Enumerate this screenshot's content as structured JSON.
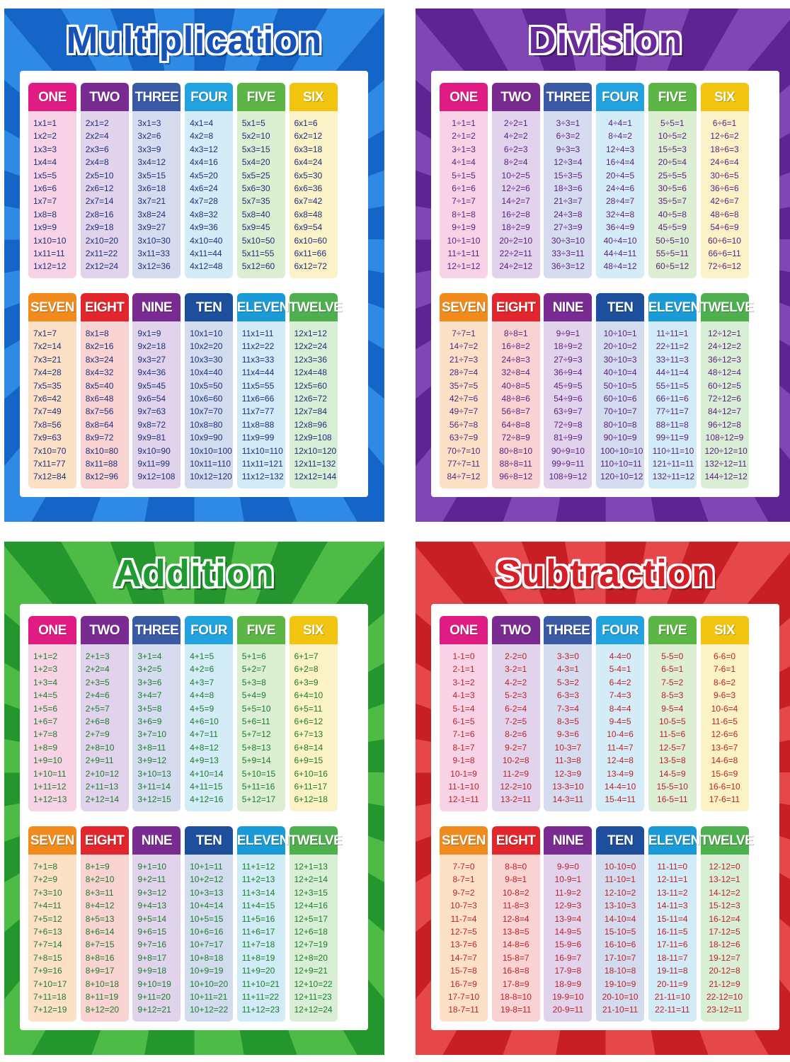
{
  "posters": [
    {
      "title": "Multiplication",
      "columns": [
        {
          "label": "ONE",
          "rows": [
            "1x1=1",
            "1x2=2",
            "1x3=3",
            "1x4=4",
            "1x5=5",
            "1x6=6",
            "1x7=7",
            "1x8=8",
            "1x9=9",
            "1x10=10",
            "1x11=11",
            "1x12=12"
          ]
        },
        {
          "label": "TWO",
          "rows": [
            "2x1=2",
            "2x2=4",
            "2x3=6",
            "2x4=8",
            "2x5=10",
            "2x6=12",
            "2x7=14",
            "2x8=16",
            "2x9=18",
            "2x10=20",
            "2x11=22",
            "2x12=24"
          ]
        },
        {
          "label": "THREE",
          "rows": [
            "3x1=3",
            "3x2=6",
            "3x3=9",
            "3x4=12",
            "3x5=15",
            "3x6=18",
            "3x7=21",
            "3x8=24",
            "3x9=27",
            "3x10=30",
            "3x11=33",
            "3x12=36"
          ]
        },
        {
          "label": "FOUR",
          "rows": [
            "4x1=4",
            "4x2=8",
            "4x3=12",
            "4x4=16",
            "4x5=20",
            "4x6=24",
            "4x7=28",
            "4x8=32",
            "4x9=36",
            "4x10=40",
            "4x11=44",
            "4x12=48"
          ]
        },
        {
          "label": "FIVE",
          "rows": [
            "5x1=5",
            "5x2=10",
            "5x3=15",
            "5x4=20",
            "5x5=25",
            "5x6=30",
            "5x7=35",
            "5x8=40",
            "5x9=45",
            "5x10=50",
            "5x11=55",
            "5x12=60"
          ]
        },
        {
          "label": "SIX",
          "rows": [
            "6x1=6",
            "6x2=12",
            "6x3=18",
            "6x4=24",
            "6x5=30",
            "6x6=36",
            "6x7=42",
            "6x8=48",
            "6x9=54",
            "6x10=60",
            "6x11=66",
            "6x12=72"
          ]
        },
        {
          "label": "SEVEN",
          "rows": [
            "7x1=7",
            "7x2=14",
            "7x3=21",
            "7x4=28",
            "7x5=35",
            "7x6=42",
            "7x7=49",
            "7x8=56",
            "7x9=63",
            "7x10=70",
            "7x11=77",
            "7x12=84"
          ]
        },
        {
          "label": "EIGHT",
          "rows": [
            "8x1=8",
            "8x2=16",
            "8x3=24",
            "8x4=32",
            "8x5=40",
            "8x6=48",
            "8x7=56",
            "8x8=64",
            "8x9=72",
            "8x10=80",
            "8x11=88",
            "8x12=96"
          ]
        },
        {
          "label": "NINE",
          "rows": [
            "9x1=9",
            "9x2=18",
            "9x3=27",
            "9x4=36",
            "9x5=45",
            "9x6=54",
            "9x7=63",
            "9x8=72",
            "9x9=81",
            "9x10=90",
            "9x11=99",
            "9x12=108"
          ]
        },
        {
          "label": "TEN",
          "rows": [
            "10x1=10",
            "10x2=20",
            "10x3=30",
            "10x4=40",
            "10x5=50",
            "10x6=60",
            "10x7=70",
            "10x8=80",
            "10x9=90",
            "10x10=100",
            "10x11=110",
            "10x12=120"
          ]
        },
        {
          "label": "ELEVEN",
          "rows": [
            "11x1=11",
            "11x2=22",
            "11x3=33",
            "11x4=44",
            "11x5=55",
            "11x6=66",
            "11x7=77",
            "11x8=88",
            "11x9=99",
            "11x10=110",
            "11x11=121",
            "11x12=132"
          ]
        },
        {
          "label": "TWELVE",
          "rows": [
            "12x1=12",
            "12x2=24",
            "12x3=36",
            "12x4=48",
            "12x5=60",
            "12x6=72",
            "12x7=84",
            "12x8=96",
            "12x9=108",
            "12x10=120",
            "12x11=132",
            "12x12=144"
          ]
        }
      ]
    },
    {
      "title": "Division",
      "columns": [
        {
          "label": "ONE",
          "rows": [
            "1÷1=1",
            "2÷1=2",
            "3÷1=3",
            "4÷1=4",
            "5÷1=5",
            "6÷1=6",
            "7÷1=7",
            "8÷1=8",
            "9÷1=9",
            "10÷1=10",
            "11÷1=11",
            "12÷1=12"
          ]
        },
        {
          "label": "TWO",
          "rows": [
            "2÷2=1",
            "4÷2=2",
            "6÷2=3",
            "8÷2=4",
            "10÷2=5",
            "12÷2=6",
            "14÷2=7",
            "16÷2=8",
            "18÷2=9",
            "20÷2=10",
            "22÷2=11",
            "24÷2=12"
          ]
        },
        {
          "label": "THREE",
          "rows": [
            "3÷3=1",
            "6÷3=2",
            "9÷3=3",
            "12÷3=4",
            "15÷3=5",
            "18÷3=6",
            "21÷3=7",
            "24÷3=8",
            "27÷3=9",
            "30÷3=10",
            "33÷3=11",
            "36÷3=12"
          ]
        },
        {
          "label": "FOUR",
          "rows": [
            "4÷4=1",
            "8÷4=2",
            "12÷4=3",
            "16÷4=4",
            "20÷4=5",
            "24÷4=6",
            "28÷4=7",
            "32÷4=8",
            "36÷4=9",
            "40÷4=10",
            "44÷4=11",
            "48÷4=12"
          ]
        },
        {
          "label": "FIVE",
          "rows": [
            "5÷5=1",
            "10÷5=2",
            "15÷5=3",
            "20÷5=4",
            "25÷5=5",
            "30÷5=6",
            "35÷5=7",
            "40÷5=8",
            "45÷5=9",
            "50÷5=10",
            "55÷5=11",
            "60÷5=12"
          ]
        },
        {
          "label": "SIX",
          "rows": [
            "6÷6=1",
            "12÷6=2",
            "18÷6=3",
            "24÷6=4",
            "30÷6=5",
            "36÷6=6",
            "42÷6=7",
            "48÷6=8",
            "54÷6=9",
            "60÷6=10",
            "66÷6=11",
            "72÷6=12"
          ]
        },
        {
          "label": "SEVEN",
          "rows": [
            "7÷7=1",
            "14÷7=2",
            "21÷7=3",
            "28÷7=4",
            "35÷7=5",
            "42÷7=6",
            "49÷7=7",
            "56÷7=8",
            "63÷7=9",
            "70÷7=10",
            "77÷7=11",
            "84÷7=12"
          ]
        },
        {
          "label": "EIGHT",
          "rows": [
            "8÷8=1",
            "16÷8=2",
            "24÷8=3",
            "32÷8=4",
            "40÷8=5",
            "48÷8=6",
            "56÷8=7",
            "64÷8=8",
            "72÷8=9",
            "80÷8=10",
            "88÷8=11",
            "96÷8=12"
          ]
        },
        {
          "label": "NINE",
          "rows": [
            "9÷9=1",
            "18÷9=2",
            "27÷9=3",
            "36÷9=4",
            "45÷9=5",
            "54÷9=6",
            "63÷9=7",
            "72÷9=8",
            "81÷9=9",
            "90÷9=10",
            "99÷9=11",
            "108÷9=12"
          ]
        },
        {
          "label": "TEN",
          "rows": [
            "10÷10=1",
            "20÷10=2",
            "30÷10=3",
            "40÷10=4",
            "50÷10=5",
            "60÷10=6",
            "70÷10=7",
            "80÷10=8",
            "90÷10=9",
            "100÷10=10",
            "110÷10=11",
            "120÷10=12"
          ]
        },
        {
          "label": "ELEVEN",
          "rows": [
            "11÷11=1",
            "22÷11=2",
            "33÷11=3",
            "44÷11=4",
            "55÷11=5",
            "66÷11=6",
            "77÷11=7",
            "88÷11=8",
            "99÷11=9",
            "110÷11=10",
            "121÷11=11",
            "132÷11=12"
          ]
        },
        {
          "label": "TWELVE",
          "rows": [
            "12÷12=1",
            "24÷12=2",
            "36÷12=3",
            "48÷12=4",
            "60÷12=5",
            "72÷12=6",
            "84÷12=7",
            "96÷12=8",
            "108÷12=9",
            "120÷12=10",
            "132÷12=11",
            "144÷12=12"
          ]
        }
      ]
    },
    {
      "title": "Addition",
      "columns": [
        {
          "label": "ONE",
          "rows": [
            "1+1=2",
            "1+2=3",
            "1+3=4",
            "1+4=5",
            "1+5=6",
            "1+6=7",
            "1+7=8",
            "1+8=9",
            "1+9=10",
            "1+10=11",
            "1+11=12",
            "1+12=13"
          ]
        },
        {
          "label": "TWO",
          "rows": [
            "2+1=3",
            "2+2=4",
            "2+3=5",
            "2+4=6",
            "2+5=7",
            "2+6=8",
            "2+7=9",
            "2+8=10",
            "2+9=11",
            "2+10=12",
            "2+11=13",
            "2+12=14"
          ]
        },
        {
          "label": "THREE",
          "rows": [
            "3+1=4",
            "3+2=5",
            "3+3=6",
            "3+4=7",
            "3+5=8",
            "3+6=9",
            "3+7=10",
            "3+8=11",
            "3+9=12",
            "3+10=13",
            "3+11=14",
            "3+12=15"
          ]
        },
        {
          "label": "FOUR",
          "rows": [
            "4+1=5",
            "4+2=6",
            "4+3=7",
            "4+4=8",
            "4+5=9",
            "4+6=10",
            "4+7=11",
            "4+8=12",
            "4+9=13",
            "4+10=14",
            "4+11=15",
            "4+12=16"
          ]
        },
        {
          "label": "FIVE",
          "rows": [
            "5+1=6",
            "5+2=7",
            "5+3=8",
            "5+4=9",
            "5+5=10",
            "5+6=11",
            "5+7=12",
            "5+8=13",
            "5+9=14",
            "5+10=15",
            "5+11=16",
            "5+12=17"
          ]
        },
        {
          "label": "SIX",
          "rows": [
            "6+1=7",
            "6+2=8",
            "6+3=9",
            "6+4=10",
            "6+5=11",
            "6+6=12",
            "6+7=13",
            "6+8=14",
            "6+9=15",
            "6+10=16",
            "6+11=17",
            "6+12=18"
          ]
        },
        {
          "label": "SEVEN",
          "rows": [
            "7+1=8",
            "7+2=9",
            "7+3=10",
            "7+4=11",
            "7+5=12",
            "7+6=13",
            "7+7=14",
            "7+8=15",
            "7+9=16",
            "7+10=17",
            "7+11=18",
            "7+12=19"
          ]
        },
        {
          "label": "EIGHT",
          "rows": [
            "8+1=9",
            "8+2=10",
            "8+3=11",
            "8+4=12",
            "8+5=13",
            "8+6=14",
            "8+7=15",
            "8+8=16",
            "8+9=17",
            "8+10=18",
            "8+11=19",
            "8+12=20"
          ]
        },
        {
          "label": "NINE",
          "rows": [
            "9+1=10",
            "9+2=11",
            "9+3=12",
            "9+4=13",
            "9+5=14",
            "9+6=15",
            "9+7=16",
            "9+8=17",
            "9+9=18",
            "9+10=19",
            "9+11=20",
            "9+12=21"
          ]
        },
        {
          "label": "TEN",
          "rows": [
            "10+1=11",
            "10+2=12",
            "10+3=13",
            "10+4=14",
            "10+5=15",
            "10+6=16",
            "10+7=17",
            "10+8=18",
            "10+9=19",
            "10+10=20",
            "10+11=21",
            "10+12=22"
          ]
        },
        {
          "label": "ELEVEN",
          "rows": [
            "11+1=12",
            "11+2=13",
            "11+3=14",
            "11+4=15",
            "11+5=16",
            "11+6=17",
            "11+7=18",
            "11+8=19",
            "11+9=20",
            "11+10=21",
            "11+11=22",
            "11+12=23"
          ]
        },
        {
          "label": "TWELVE",
          "rows": [
            "12+1=13",
            "12+2=14",
            "12+3=15",
            "12+4=16",
            "12+5=17",
            "12+6=18",
            "12+7=19",
            "12+8=20",
            "12+9=21",
            "12+10=22",
            "12+11=23",
            "12+12=24"
          ]
        }
      ]
    },
    {
      "title": "Subtraction",
      "columns": [
        {
          "label": "ONE",
          "rows": [
            "1-1=0",
            "2-1=1",
            "3-1=2",
            "4-1=3",
            "5-1=4",
            "6-1=5",
            "7-1=6",
            "8-1=7",
            "9-1=8",
            "10-1=9",
            "11-1=10",
            "12-1=11"
          ]
        },
        {
          "label": "TWO",
          "rows": [
            "2-2=0",
            "3-2=1",
            "4-2=2",
            "5-2=3",
            "6-2=4",
            "7-2=5",
            "8-2=6",
            "9-2=7",
            "10-2=8",
            "11-2=9",
            "12-2=10",
            "13-2=11"
          ]
        },
        {
          "label": "THREE",
          "rows": [
            "3-3=0",
            "4-3=1",
            "5-3=2",
            "6-3=3",
            "7-3=4",
            "8-3=5",
            "9-3=6",
            "10-3=7",
            "11-3=8",
            "12-3=9",
            "13-3=10",
            "14-3=11"
          ]
        },
        {
          "label": "FOUR",
          "rows": [
            "4-4=0",
            "5-4=1",
            "6-4=2",
            "7-4=3",
            "8-4=4",
            "9-4=5",
            "10-4=6",
            "11-4=7",
            "12-4=8",
            "13-4=9",
            "14-4=10",
            "15-4=11"
          ]
        },
        {
          "label": "FIVE",
          "rows": [
            "5-5=0",
            "6-5=1",
            "7-5=2",
            "8-5=3",
            "9-5=4",
            "10-5=5",
            "11-5=6",
            "12-5=7",
            "13-5=8",
            "14-5=9",
            "15-5=10",
            "16-5=11"
          ]
        },
        {
          "label": "SIX",
          "rows": [
            "6-6=0",
            "7-6=1",
            "8-6=2",
            "9-6=3",
            "10-6=4",
            "11-6=5",
            "12-6=6",
            "13-6=7",
            "14-6=8",
            "15-6=9",
            "16-6=10",
            "17-6=11"
          ]
        },
        {
          "label": "SEVEN",
          "rows": [
            "7-7=0",
            "8-7=1",
            "9-7=2",
            "10-7=3",
            "11-7=4",
            "12-7=5",
            "13-7=6",
            "14-7=7",
            "15-7=8",
            "16-7=9",
            "17-7=10",
            "18-7=11"
          ]
        },
        {
          "label": "EIGHT",
          "rows": [
            "8-8=0",
            "9-8=1",
            "10-8=2",
            "11-8=3",
            "12-8=4",
            "13-8=5",
            "14-8=6",
            "15-8=7",
            "16-8=8",
            "17-8=9",
            "18-8=10",
            "19-8=11"
          ]
        },
        {
          "label": "NINE",
          "rows": [
            "9-9=0",
            "10-9=1",
            "11-9=2",
            "12-9=3",
            "13-9=4",
            "14-9=5",
            "15-9=6",
            "16-9=7",
            "17-9=8",
            "18-9=9",
            "19-9=10",
            "20-9=11"
          ]
        },
        {
          "label": "TEN",
          "rows": [
            "10-10=0",
            "11-10=1",
            "12-10=2",
            "13-10=3",
            "14-10=4",
            "15-10=5",
            "16-10=6",
            "17-10=7",
            "18-10=8",
            "19-10=9",
            "20-10=10",
            "21-10=11"
          ]
        },
        {
          "label": "ELEVEN",
          "rows": [
            "11-11=0",
            "12-11=1",
            "13-11=2",
            "14-11=3",
            "15-11=4",
            "16-11=5",
            "17-11=6",
            "18-11=7",
            "19-11=8",
            "20-11=9",
            "21-11=10",
            "22-11=11"
          ]
        },
        {
          "label": "TWELVE",
          "rows": [
            "12-12=0",
            "13-12=1",
            "14-12=2",
            "15-12=3",
            "16-12=4",
            "17-12=5",
            "18-12=6",
            "19-12=7",
            "20-12=8",
            "21-12=9",
            "22-12=10",
            "23-12=11"
          ]
        }
      ]
    }
  ]
}
